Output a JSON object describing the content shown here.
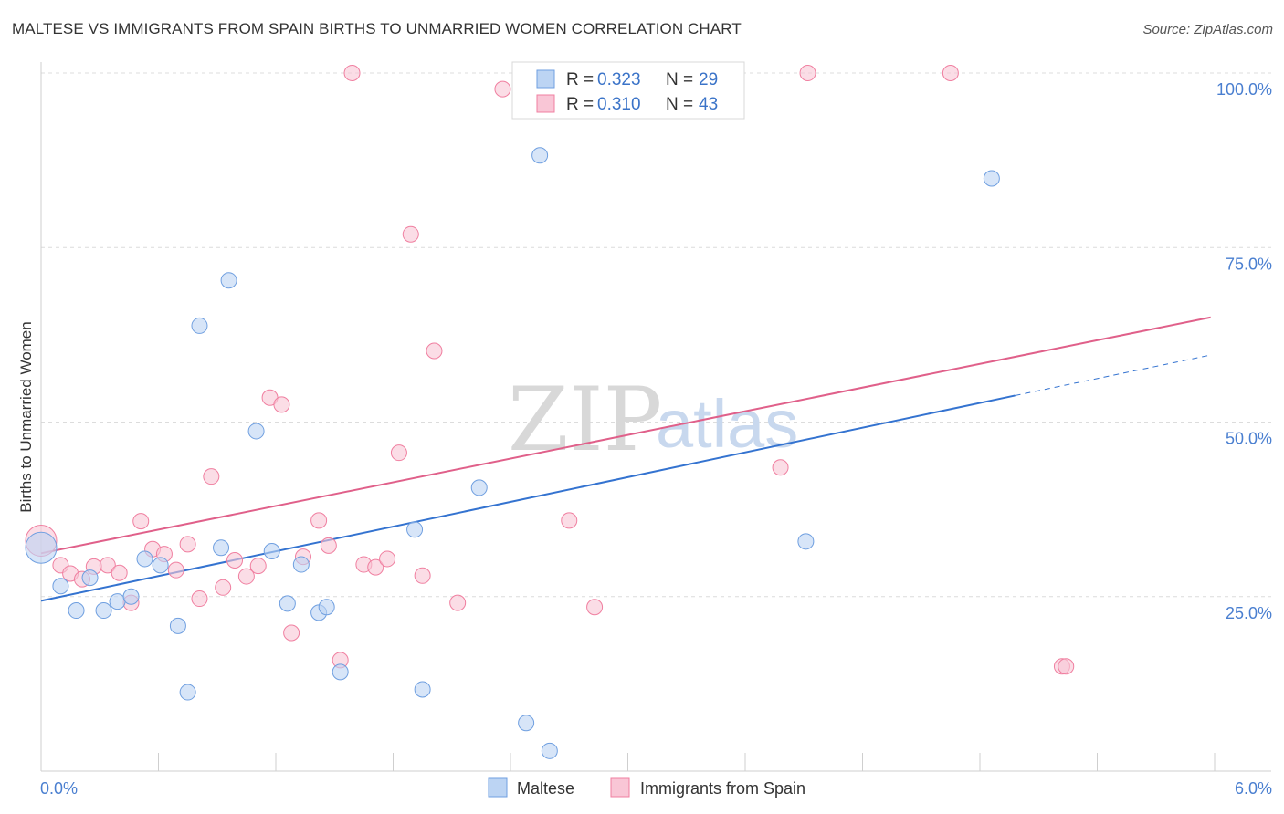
{
  "header": {
    "title": "MALTESE VS IMMIGRANTS FROM SPAIN BIRTHS TO UNMARRIED WOMEN CORRELATION CHART",
    "source": "Source: ZipAtlas.com"
  },
  "watermark": {
    "zip": "ZIP",
    "atlas": "atlas"
  },
  "chart_data": {
    "type": "scatter",
    "title": "MALTESE VS IMMIGRANTS FROM SPAIN BIRTHS TO UNMARRIED WOMEN CORRELATION CHART",
    "xlabel": "",
    "ylabel": "Births to Unmarried Women",
    "xlim": [
      0.0,
      6.0
    ],
    "ylim": [
      0.0,
      100.0
    ],
    "x_tick_labels": {
      "left": "0.0%",
      "right": "6.0%"
    },
    "y_ticks": [
      {
        "value": 100,
        "label": "100.0%"
      },
      {
        "value": 75,
        "label": "75.0%"
      },
      {
        "value": 50,
        "label": "50.0%"
      },
      {
        "value": 25,
        "label": "25.0%"
      }
    ],
    "legend": {
      "entries": [
        {
          "r_label": "R =",
          "r_value": "0.323",
          "n_label": "N =",
          "n_value": "29"
        },
        {
          "r_label": "R =",
          "r_value": "0.310",
          "n_label": "N =",
          "n_value": "43"
        }
      ]
    },
    "series": [
      {
        "name": "Maltese",
        "color": "#6f9fe0",
        "fill": "#bcd4f3",
        "line_color": "#3473d0",
        "r": 0.323,
        "n": 29,
        "trend": {
          "x0": 0.0,
          "y0": 24.4,
          "x1": 4.98,
          "y1": 53.8,
          "dash_x1": 5.98,
          "dash_y1": 59.6
        },
        "points": [
          [
            0.0,
            32.0
          ],
          [
            0.1,
            26.5
          ],
          [
            0.18,
            23.0
          ],
          [
            0.25,
            27.7
          ],
          [
            0.32,
            23.0
          ],
          [
            0.39,
            24.3
          ],
          [
            0.46,
            25.0
          ],
          [
            0.53,
            30.4
          ],
          [
            0.61,
            29.5
          ],
          [
            0.7,
            20.8
          ],
          [
            0.75,
            11.3
          ],
          [
            0.81,
            63.8
          ],
          [
            0.92,
            32.0
          ],
          [
            0.96,
            70.3
          ],
          [
            1.1,
            48.7
          ],
          [
            1.18,
            31.5
          ],
          [
            1.26,
            24.0
          ],
          [
            1.33,
            29.6
          ],
          [
            1.42,
            22.7
          ],
          [
            1.46,
            23.5
          ],
          [
            1.53,
            14.2
          ],
          [
            1.91,
            34.6
          ],
          [
            1.95,
            11.7
          ],
          [
            2.24,
            40.6
          ],
          [
            2.48,
            6.9
          ],
          [
            2.55,
            88.2
          ],
          [
            2.6,
            2.9
          ],
          [
            3.91,
            32.9
          ],
          [
            4.86,
            84.9
          ]
        ]
      },
      {
        "name": "Immigrants from Spain",
        "color": "#f07fa0",
        "fill": "#f9c6d6",
        "line_color": "#e0608a",
        "r": 0.31,
        "n": 43,
        "trend": {
          "x0": 0.0,
          "y0": 31.2,
          "x1": 5.98,
          "y1": 65.0
        },
        "points": [
          [
            0.0,
            33.0
          ],
          [
            0.1,
            29.5
          ],
          [
            0.15,
            28.3
          ],
          [
            0.21,
            27.5
          ],
          [
            0.27,
            29.3
          ],
          [
            0.34,
            29.5
          ],
          [
            0.4,
            28.4
          ],
          [
            0.46,
            24.1
          ],
          [
            0.51,
            35.8
          ],
          [
            0.57,
            31.8
          ],
          [
            0.63,
            31.1
          ],
          [
            0.69,
            28.8
          ],
          [
            0.75,
            32.5
          ],
          [
            0.81,
            24.7
          ],
          [
            0.87,
            42.2
          ],
          [
            0.93,
            26.3
          ],
          [
            0.99,
            30.2
          ],
          [
            1.05,
            27.9
          ],
          [
            1.11,
            29.4
          ],
          [
            1.17,
            53.5
          ],
          [
            1.23,
            52.5
          ],
          [
            1.28,
            19.8
          ],
          [
            1.34,
            30.7
          ],
          [
            1.42,
            35.9
          ],
          [
            1.47,
            32.3
          ],
          [
            1.53,
            15.9
          ],
          [
            1.59,
            100.0
          ],
          [
            1.65,
            29.6
          ],
          [
            1.71,
            29.2
          ],
          [
            1.77,
            30.4
          ],
          [
            1.83,
            45.6
          ],
          [
            1.89,
            76.9
          ],
          [
            1.95,
            28.0
          ],
          [
            2.01,
            60.2
          ],
          [
            2.13,
            24.1
          ],
          [
            2.36,
            97.7
          ],
          [
            2.7,
            35.9
          ],
          [
            2.83,
            23.5
          ],
          [
            3.78,
            43.5
          ],
          [
            3.92,
            100.0
          ],
          [
            4.65,
            100.0
          ],
          [
            5.22,
            15.0
          ],
          [
            5.24,
            15.0
          ]
        ]
      }
    ]
  }
}
